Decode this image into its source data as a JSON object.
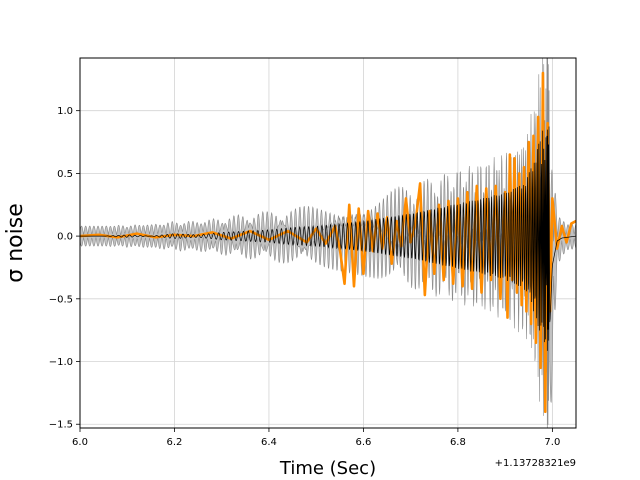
{
  "chart_data": {
    "type": "line",
    "title": "",
    "xlabel": "Time (Sec)",
    "ylabel": "σ noise",
    "x_offset_label": "+1.13728321e9",
    "xlim": [
      6.0,
      7.05
    ],
    "ylim": [
      -1.53,
      1.42
    ],
    "xticks": [
      6.0,
      6.2,
      6.4,
      6.6,
      6.8,
      7.0
    ],
    "xtick_labels": [
      "6.0",
      "6.2",
      "6.4",
      "6.6",
      "6.8",
      "7.0"
    ],
    "yticks": [
      -1.5,
      -1.0,
      -0.5,
      0.0,
      0.5,
      1.0
    ],
    "ytick_labels": [
      "−1.5",
      "−1.0",
      "−0.5",
      "0.0",
      "0.5",
      "1.0"
    ],
    "grid": true,
    "legend": "none",
    "colors": {
      "whitened_data": "#ff8c00",
      "reconstruction": "#000000",
      "credible_band": "#bbbbbb",
      "grid": "#d3d3d3"
    },
    "series": [
      {
        "key": "whitened_data",
        "x": [
          6.0,
          6.04,
          6.08,
          6.12,
          6.16,
          6.2,
          6.24,
          6.28,
          6.32,
          6.36,
          6.4,
          6.44,
          6.48,
          6.5,
          6.52,
          6.54,
          6.55,
          6.56,
          6.57,
          6.58,
          6.59,
          6.6,
          6.61,
          6.62,
          6.63,
          6.64,
          6.65,
          6.66,
          6.67,
          6.68,
          6.69,
          6.7,
          6.71,
          6.72,
          6.73,
          6.74,
          6.75,
          6.76,
          6.77,
          6.78,
          6.79,
          6.8,
          6.81,
          6.82,
          6.83,
          6.84,
          6.85,
          6.86,
          6.87,
          6.88,
          6.89,
          6.9,
          6.905,
          6.91,
          6.915,
          6.92,
          6.925,
          6.93,
          6.935,
          6.94,
          6.945,
          6.95,
          6.955,
          6.96,
          6.965,
          6.97,
          6.975,
          6.98,
          6.985,
          6.99,
          6.995,
          7.0,
          7.01,
          7.02,
          7.03,
          7.04,
          7.05
        ],
        "y": [
          0.0,
          0.01,
          -0.01,
          0.02,
          -0.01,
          0.01,
          0.0,
          0.03,
          -0.02,
          0.04,
          -0.03,
          0.04,
          -0.05,
          0.06,
          -0.06,
          0.08,
          -0.1,
          -0.38,
          0.25,
          -0.4,
          0.22,
          -0.3,
          0.2,
          -0.12,
          0.18,
          -0.1,
          0.15,
          -0.22,
          0.12,
          -0.08,
          0.3,
          -0.05,
          0.1,
          0.42,
          -0.47,
          0.2,
          -0.3,
          0.25,
          -0.35,
          0.28,
          -0.38,
          0.3,
          -0.4,
          0.35,
          -0.42,
          0.4,
          -0.45,
          0.38,
          -0.35,
          0.4,
          -0.5,
          0.35,
          -0.65,
          0.65,
          -0.35,
          0.62,
          -0.45,
          0.5,
          -0.55,
          0.55,
          -0.6,
          0.75,
          -0.7,
          0.8,
          -0.85,
          0.95,
          -1.05,
          1.3,
          -1.4,
          0.9,
          -0.6,
          0.3,
          -0.1,
          0.08,
          -0.05,
          0.1,
          0.12
        ]
      },
      {
        "key": "reconstruction",
        "x": [
          6.0,
          6.05,
          6.1,
          6.15,
          6.2,
          6.25,
          6.3,
          6.35,
          6.4,
          6.45,
          6.5,
          6.55,
          6.6,
          6.65,
          6.7,
          6.75,
          6.8,
          6.85,
          6.88,
          6.9,
          6.92,
          6.94,
          6.95,
          6.96,
          6.97,
          6.98,
          6.99,
          6.995,
          7.0,
          7.01,
          7.02,
          7.05
        ],
        "y": [
          0.0,
          0.0,
          0.01,
          0.0,
          0.02,
          0.01,
          0.03,
          0.04,
          0.05,
          0.07,
          0.08,
          0.1,
          0.12,
          0.15,
          0.18,
          0.22,
          0.26,
          0.3,
          0.33,
          0.35,
          0.38,
          0.42,
          0.5,
          0.6,
          0.72,
          0.85,
          0.92,
          0.88,
          0.3,
          0.05,
          0.02,
          0.0
        ]
      },
      {
        "key": "credible_band_half_width",
        "x": [
          6.0,
          6.05,
          6.1,
          6.15,
          6.2,
          6.25,
          6.3,
          6.35,
          6.4,
          6.45,
          6.5,
          6.55,
          6.6,
          6.65,
          6.7,
          6.75,
          6.8,
          6.85,
          6.9,
          6.95,
          6.97,
          6.99,
          7.0,
          7.01,
          7.03,
          7.05
        ],
        "y": [
          0.08,
          0.08,
          0.08,
          0.09,
          0.1,
          0.11,
          0.12,
          0.14,
          0.15,
          0.16,
          0.17,
          0.18,
          0.2,
          0.22,
          0.24,
          0.26,
          0.28,
          0.3,
          0.33,
          0.4,
          0.55,
          0.85,
          0.9,
          0.2,
          0.1,
          0.1
        ]
      }
    ]
  }
}
